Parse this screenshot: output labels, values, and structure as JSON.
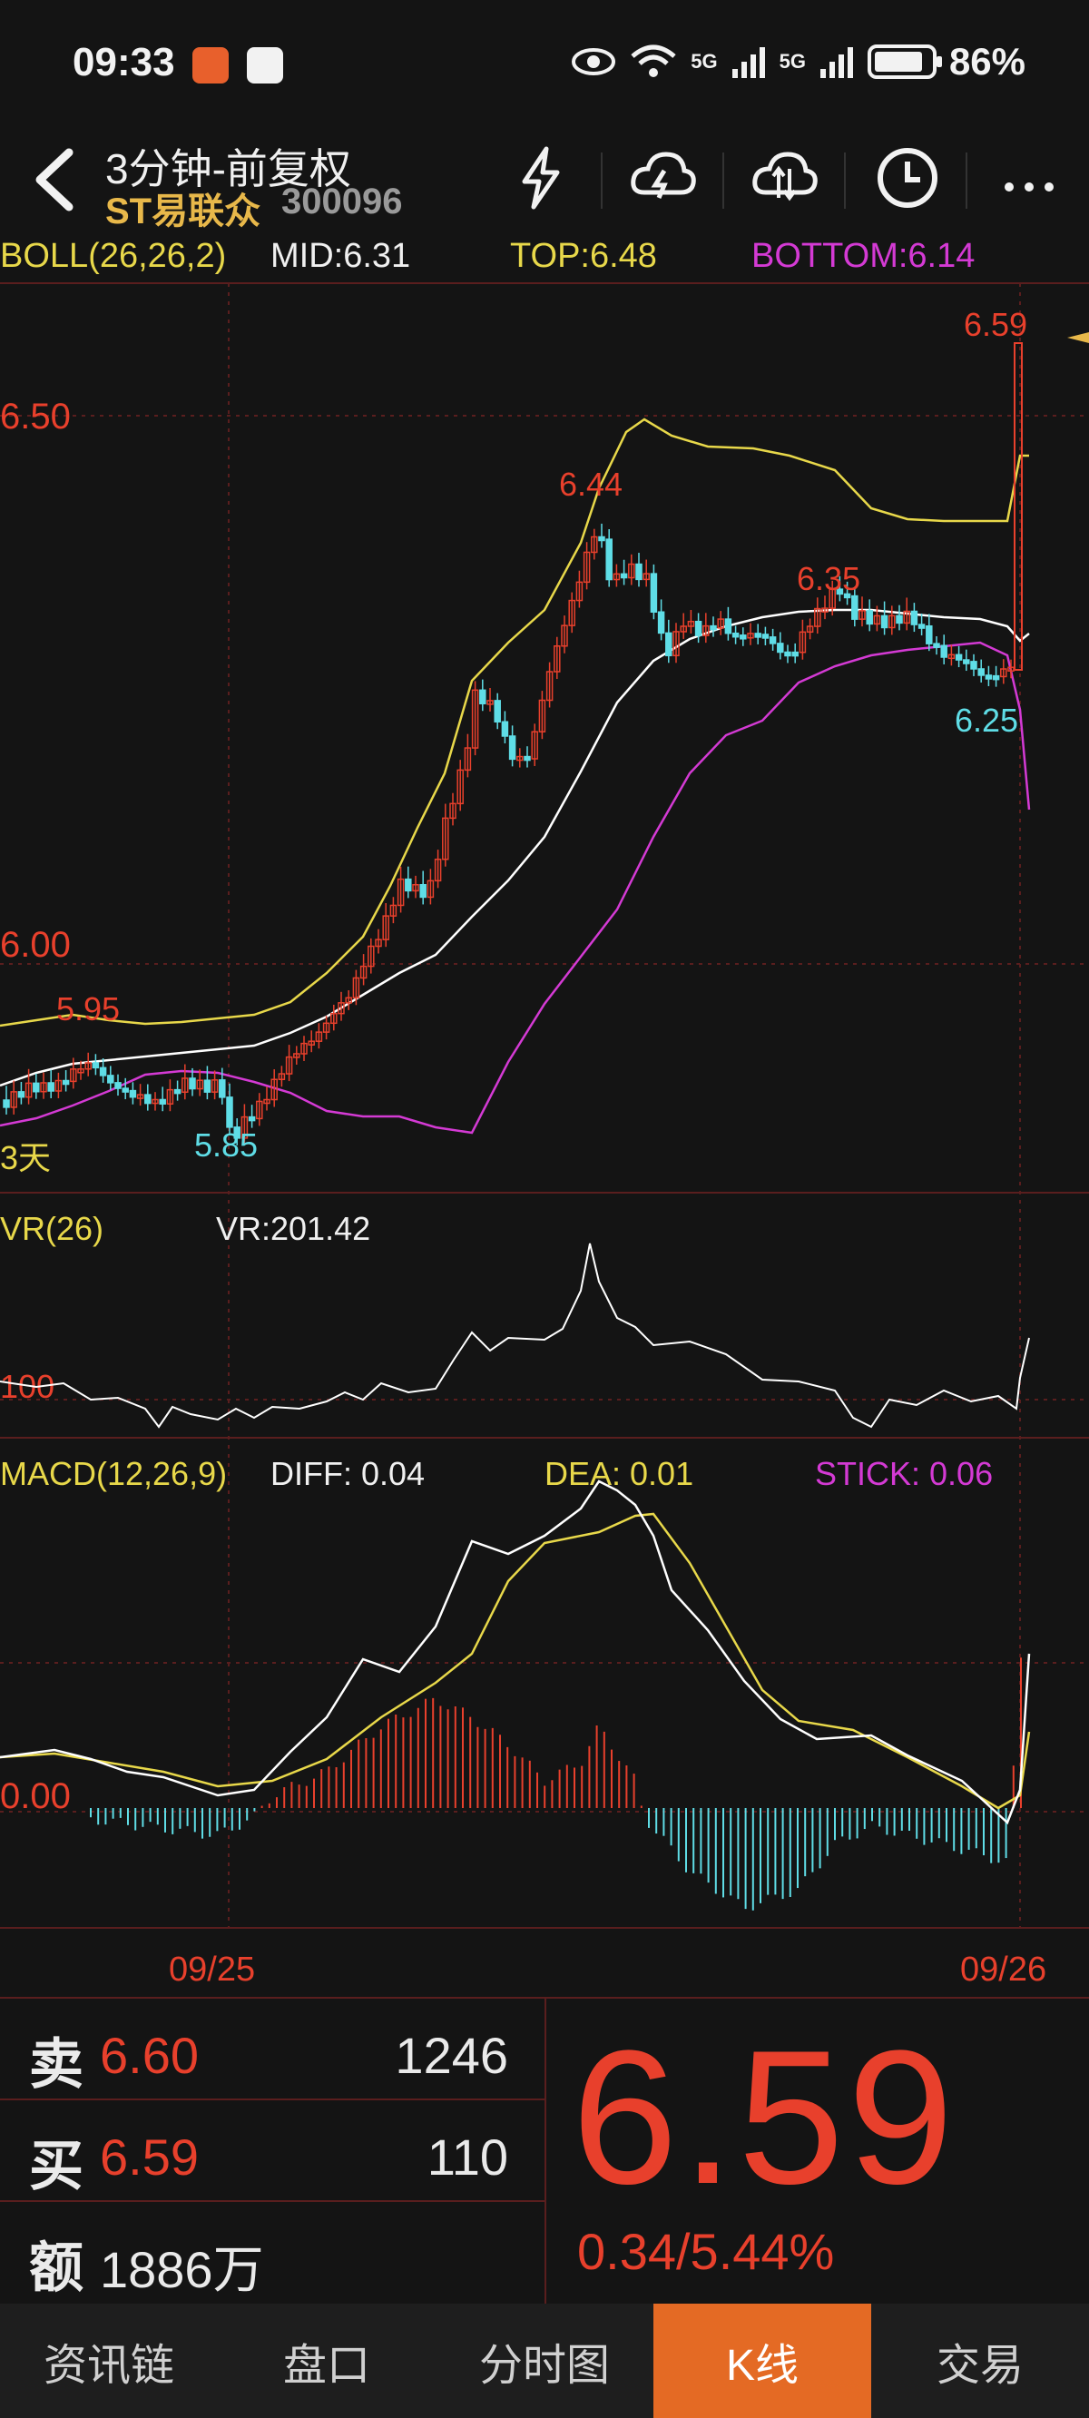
{
  "status": {
    "time": "09:33",
    "battery": "86%",
    "net1": "5G",
    "net2": "5G"
  },
  "header": {
    "title": "3分钟-前复权",
    "stock_name": "ST易联众",
    "stock_code": "300096"
  },
  "boll": {
    "label": "BOLL(26,26,2)",
    "mid": "MID:6.31",
    "top": "TOP:6.48",
    "bottom": "BOTTOM:6.14"
  },
  "price_axis": {
    "p650": "6.50",
    "p600": "6.00"
  },
  "annotations": {
    "high": "6.59",
    "a644": "6.44",
    "a635": "6.35",
    "a625": "6.25",
    "a595": "5.95",
    "a585": "5.85",
    "period": "3天"
  },
  "vr": {
    "label": "VR(26)",
    "value": "VR:201.42",
    "level": "100"
  },
  "macd": {
    "label": "MACD(12,26,9)",
    "diff": "DIFF: 0.04",
    "dea": "DEA: 0.01",
    "stick": "STICK: 0.06",
    "zero": "0.00"
  },
  "dates": {
    "d1": "09/25",
    "d2": "09/26"
  },
  "quote": {
    "sell_label": "卖",
    "sell_price": "6.60",
    "sell_vol": "1246",
    "buy_label": "买",
    "buy_price": "6.59",
    "buy_vol": "110",
    "amount_label": "额",
    "amount": "1886万",
    "last_price": "6.59",
    "change": "0.34/5.44%"
  },
  "tabs": [
    "资讯链",
    "盘口",
    "分时图",
    "K线",
    "交易"
  ],
  "colors": {
    "up": "#e8402c",
    "down": "#5fdde6",
    "top": "#e8d84a",
    "bottom": "#d43ad4",
    "mid": "#ffffff"
  }
}
